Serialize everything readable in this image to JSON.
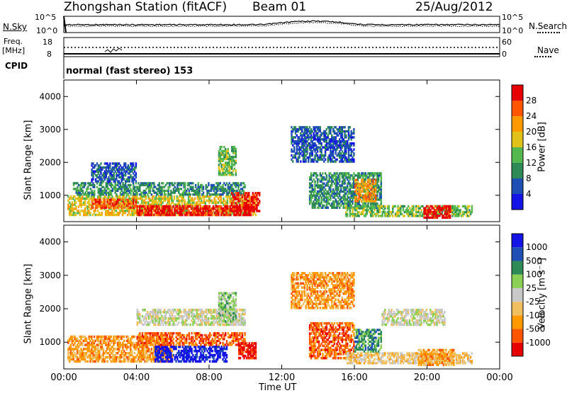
{
  "header": {
    "title": "Zhongshan Station (fitACF)",
    "beam": "Beam 01",
    "date": "25/Aug/2012"
  },
  "noise_panel": {
    "left_label": "N.Sky",
    "right_label": "N.Search",
    "left_ticks": [
      "10^5",
      "10^0"
    ],
    "right_ticks": [
      "10^5",
      "10^0"
    ]
  },
  "freq_panel": {
    "left_label_line1": "Freq.",
    "left_label_line2": "[MHz]",
    "right_label": "Nave",
    "left_ticks": [
      "18",
      "8"
    ],
    "right_ticks": [
      "60",
      "0"
    ]
  },
  "cpid": {
    "label": "CPID",
    "text": "normal (fast stereo) 153"
  },
  "colors": {
    "power": [
      "#1414e6",
      "#1e4fb4",
      "#2e8b57",
      "#55b84e",
      "#e0c21a",
      "#ff9900",
      "#ff5500",
      "#e60000"
    ],
    "velocity": [
      "#e60000",
      "#ff5500",
      "#ff9900",
      "#f0c060",
      "#c8c8c8",
      "#8bcf54",
      "#2e8b57",
      "#1e4fb4",
      "#1414e6"
    ]
  },
  "chart_data": [
    {
      "type": "heatmap",
      "name": "power",
      "ylabel": "Slant Range [km]",
      "yticks": [
        "4000",
        "3000",
        "2000",
        "1000"
      ],
      "ylim": [
        200,
        4500
      ],
      "xticks": [
        "00:00",
        "04:00",
        "08:00",
        "12:00",
        "16:00",
        "20:00",
        "00:00"
      ],
      "colorbar_label": "Power [dB]",
      "colorbar_ticks": [
        "28",
        "24",
        "20",
        "16",
        "12",
        "8",
        "4"
      ],
      "blobs": [
        {
          "t0": 0.2,
          "t1": 10.6,
          "r0": 380,
          "r1": 1000,
          "level": 4
        },
        {
          "t0": 4.0,
          "t1": 10.4,
          "r0": 380,
          "r1": 700,
          "level": 7
        },
        {
          "t0": 1.5,
          "t1": 4.0,
          "r0": 600,
          "r1": 900,
          "level": 6
        },
        {
          "t0": 0.5,
          "t1": 10.0,
          "r0": 1000,
          "r1": 1400,
          "level": 2
        },
        {
          "t0": 1.5,
          "t1": 4.0,
          "r0": 1400,
          "r1": 2000,
          "level": 1
        },
        {
          "t0": 8.5,
          "t1": 9.5,
          "r0": 1600,
          "r1": 2500,
          "level": 3
        },
        {
          "t0": 9.2,
          "t1": 10.8,
          "r0": 500,
          "r1": 1100,
          "level": 7
        },
        {
          "t0": 13.5,
          "t1": 17.5,
          "r0": 600,
          "r1": 1700,
          "level": 2
        },
        {
          "t0": 15.5,
          "t1": 22.5,
          "r0": 350,
          "r1": 700,
          "level": 3
        },
        {
          "t0": 19.8,
          "t1": 21.3,
          "r0": 300,
          "r1": 700,
          "level": 7
        },
        {
          "t0": 16.0,
          "t1": 17.2,
          "r0": 800,
          "r1": 1500,
          "level": 5
        },
        {
          "t0": 12.5,
          "t1": 16.0,
          "r0": 2000,
          "r1": 3100,
          "level": 1
        }
      ]
    },
    {
      "type": "heatmap",
      "name": "velocity",
      "ylabel": "Slant Range [km]",
      "yticks": [
        "4000",
        "3000",
        "2000",
        "1000"
      ],
      "ylim": [
        200,
        4500
      ],
      "xlabel": "Time UT",
      "xticks": [
        "00:00",
        "04:00",
        "08:00",
        "12:00",
        "16:00",
        "20:00",
        "00:00"
      ],
      "colorbar_label": "Velocity [m s⁻¹]",
      "colorbar_ticks": [
        "1000",
        "500",
        "100",
        "25",
        "-25",
        "-100",
        "-500",
        "-1000"
      ],
      "blobs": [
        {
          "t0": 0.2,
          "t1": 6.0,
          "r0": 400,
          "r1": 1200,
          "level": 2
        },
        {
          "t0": 5.0,
          "t1": 9.0,
          "r0": 400,
          "r1": 900,
          "level": 8
        },
        {
          "t0": 4.0,
          "t1": 10.0,
          "r0": 900,
          "r1": 1300,
          "level": 1
        },
        {
          "t0": 9.6,
          "t1": 10.6,
          "r0": 500,
          "r1": 1000,
          "level": 0
        },
        {
          "t0": 4.0,
          "t1": 10.0,
          "r0": 1500,
          "r1": 2000,
          "level": 4
        },
        {
          "t0": 8.5,
          "t1": 9.5,
          "r0": 1600,
          "r1": 2500,
          "level": 5
        },
        {
          "t0": 13.5,
          "t1": 16.0,
          "r0": 500,
          "r1": 1600,
          "level": 1
        },
        {
          "t0": 15.5,
          "t1": 22.5,
          "r0": 350,
          "r1": 700,
          "level": 3
        },
        {
          "t0": 16.0,
          "t1": 17.5,
          "r0": 700,
          "r1": 1400,
          "level": 6
        },
        {
          "t0": 19.5,
          "t1": 21.5,
          "r0": 300,
          "r1": 800,
          "level": 2
        },
        {
          "t0": 17.5,
          "t1": 21.0,
          "r0": 1500,
          "r1": 2000,
          "level": 4
        },
        {
          "t0": 12.5,
          "t1": 16.0,
          "r0": 2000,
          "r1": 3100,
          "level": 2
        }
      ]
    }
  ]
}
